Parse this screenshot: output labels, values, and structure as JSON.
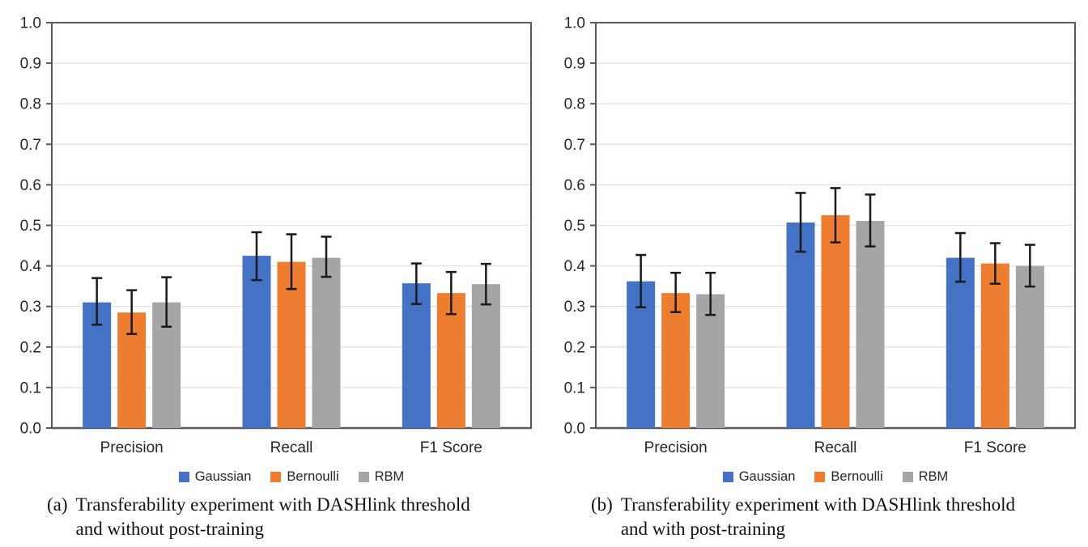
{
  "colors": {
    "axis": "#595959",
    "grid": "#e2e2e2",
    "error_bar": "#1a1a1a",
    "tick_text": "#262626",
    "background": "#ffffff",
    "series_blue": "#4472C4",
    "series_orange": "#ED7D31",
    "series_gray": "#A5A5A5"
  },
  "chart_data": [
    {
      "type": "bar",
      "title": "",
      "xlabel": "",
      "ylabel": "",
      "categories": [
        "Precision",
        "Recall",
        "F1 Score"
      ],
      "ylim": [
        0.0,
        1.0
      ],
      "ytick_step": 0.1,
      "ytick_labels": [
        "0.0",
        "0.1",
        "0.2",
        "0.3",
        "0.4",
        "0.5",
        "0.6",
        "0.7",
        "0.8",
        "0.9",
        "1.0"
      ],
      "grid": true,
      "legend_position": "bottom",
      "series": [
        {
          "name": "Gaussian",
          "color": "#4472C4",
          "values": [
            0.31,
            0.425,
            0.357
          ],
          "error_low": [
            0.255,
            0.365,
            0.306
          ],
          "error_high": [
            0.37,
            0.483,
            0.406
          ]
        },
        {
          "name": "Bernoulli",
          "color": "#ED7D31",
          "values": [
            0.285,
            0.41,
            0.333
          ],
          "error_low": [
            0.232,
            0.343,
            0.281
          ],
          "error_high": [
            0.34,
            0.478,
            0.385
          ]
        },
        {
          "name": "RBM",
          "color": "#A5A5A5",
          "values": [
            0.31,
            0.42,
            0.355
          ],
          "error_low": [
            0.25,
            0.373,
            0.305
          ],
          "error_high": [
            0.372,
            0.472,
            0.405
          ]
        }
      ],
      "caption": {
        "label": "(a)",
        "line1": "Transferability experiment with DASHlink threshold",
        "line2": "and without post-training"
      }
    },
    {
      "type": "bar",
      "title": "",
      "xlabel": "",
      "ylabel": "",
      "categories": [
        "Precision",
        "Recall",
        "F1 Score"
      ],
      "ylim": [
        0.0,
        1.0
      ],
      "ytick_step": 0.1,
      "ytick_labels": [
        "0.0",
        "0.1",
        "0.2",
        "0.3",
        "0.4",
        "0.5",
        "0.6",
        "0.7",
        "0.8",
        "0.9",
        "1.0"
      ],
      "grid": true,
      "legend_position": "bottom",
      "series": [
        {
          "name": "Gaussian",
          "color": "#4472C4",
          "values": [
            0.362,
            0.507,
            0.42
          ],
          "error_low": [
            0.298,
            0.435,
            0.361
          ],
          "error_high": [
            0.427,
            0.58,
            0.481
          ]
        },
        {
          "name": "Bernoulli",
          "color": "#ED7D31",
          "values": [
            0.333,
            0.525,
            0.406
          ],
          "error_low": [
            0.286,
            0.458,
            0.356
          ],
          "error_high": [
            0.383,
            0.592,
            0.456
          ]
        },
        {
          "name": "RBM",
          "color": "#A5A5A5",
          "values": [
            0.33,
            0.511,
            0.4
          ],
          "error_low": [
            0.279,
            0.448,
            0.349
          ],
          "error_high": [
            0.383,
            0.576,
            0.452
          ]
        }
      ],
      "caption": {
        "label": "(b)",
        "line1": "Transferability experiment with DASHlink threshold",
        "line2": "and with post-training"
      }
    }
  ]
}
